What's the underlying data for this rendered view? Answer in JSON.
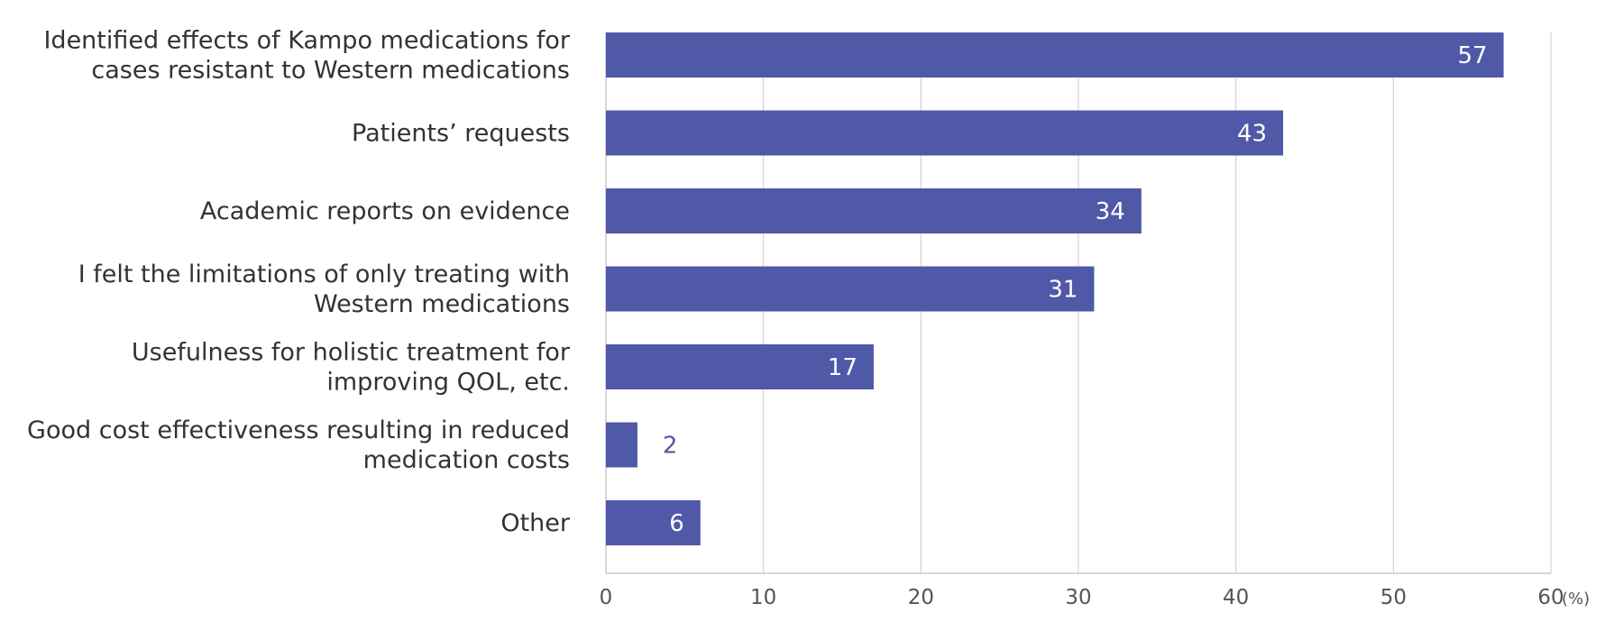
{
  "chart_data": {
    "type": "bar",
    "orientation": "horizontal",
    "categories": [
      [
        "Identified effects of Kampo medications for",
        "cases resistant to Western medications"
      ],
      [
        "Patients’ requests"
      ],
      [
        "Academic reports on evidence"
      ],
      [
        "I felt the limitations of only treating with",
        "Western medications"
      ],
      [
        "Usefulness for holistic treatment for",
        "improving QOL, etc."
      ],
      [
        "Good cost effectiveness resulting in reduced",
        "medication costs"
      ],
      [
        "Other"
      ]
    ],
    "values": [
      57,
      43,
      34,
      31,
      17,
      2,
      6
    ],
    "data_labels": [
      "57",
      "43",
      "34",
      "31",
      "17",
      "2",
      "6"
    ],
    "xlim": [
      0,
      60
    ],
    "x_ticks": [
      0,
      10,
      20,
      30,
      40,
      50,
      60
    ],
    "x_unit": "(%)",
    "grid": true,
    "legend": "none",
    "bar_color": "#5058a8"
  }
}
